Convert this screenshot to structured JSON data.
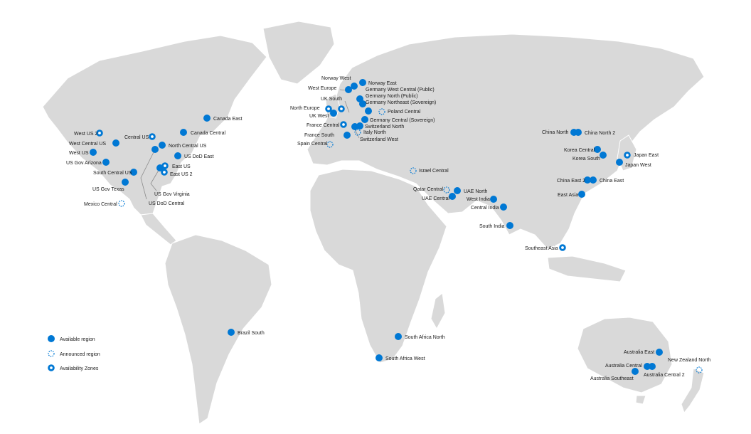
{
  "colors": {
    "marker": "#0078d4",
    "land": "#d9d9d9",
    "background": "#ffffff"
  },
  "legend": [
    {
      "type": "available",
      "label": "Available region",
      "icon": "filled-circle-icon"
    },
    {
      "type": "announced",
      "label": "Announced region",
      "icon": "dashed-circle-icon"
    },
    {
      "type": "zones",
      "label": "Availability Zones",
      "icon": "ring-circle-icon"
    }
  ],
  "regions": [
    {
      "name": "West US 2",
      "type": "zones"
    },
    {
      "name": "West Central US",
      "type": "available"
    },
    {
      "name": "West US",
      "type": "available"
    },
    {
      "name": "US Gov Arizona",
      "type": "available"
    },
    {
      "name": "Central US",
      "type": "zones"
    },
    {
      "name": "North Central US",
      "type": "available"
    },
    {
      "name": "South Central US",
      "type": "available"
    },
    {
      "name": "US Gov Texas",
      "type": "available"
    },
    {
      "name": "Canada East",
      "type": "available"
    },
    {
      "name": "Canada Central",
      "type": "available"
    },
    {
      "name": "US DoD East",
      "type": "available"
    },
    {
      "name": "East US",
      "type": "zones"
    },
    {
      "name": "East US 2",
      "type": "zones"
    },
    {
      "name": "US Gov Virginia",
      "type": "available"
    },
    {
      "name": "US DoD Central",
      "type": "available"
    },
    {
      "name": "Mexico Central",
      "type": "announced"
    },
    {
      "name": "Brazil South",
      "type": "available"
    },
    {
      "name": "Norway West",
      "type": "available"
    },
    {
      "name": "Norway East",
      "type": "available"
    },
    {
      "name": "West Europe",
      "type": "available"
    },
    {
      "name": "Germany West Central (Public)",
      "type": "available"
    },
    {
      "name": "Germany North (Public)",
      "type": "available"
    },
    {
      "name": "Germany Northeast (Sovereign)",
      "type": "available"
    },
    {
      "name": "UK South",
      "type": "zones"
    },
    {
      "name": "North Europe",
      "type": "zones"
    },
    {
      "name": "UK West",
      "type": "available"
    },
    {
      "name": "Poland Central",
      "type": "announced"
    },
    {
      "name": "Germany Central (Sovereign)",
      "type": "available"
    },
    {
      "name": "France Central",
      "type": "zones"
    },
    {
      "name": "Switzerland North",
      "type": "available"
    },
    {
      "name": "Italy North",
      "type": "announced"
    },
    {
      "name": "France South",
      "type": "available"
    },
    {
      "name": "Switzerland West",
      "type": "available"
    },
    {
      "name": "Spain Central",
      "type": "announced"
    },
    {
      "name": "Israel Central",
      "type": "announced"
    },
    {
      "name": "Qatar Central",
      "type": "announced"
    },
    {
      "name": "UAE North",
      "type": "available"
    },
    {
      "name": "UAE Central",
      "type": "available"
    },
    {
      "name": "West India",
      "type": "available"
    },
    {
      "name": "Central India",
      "type": "available"
    },
    {
      "name": "South India",
      "type": "available"
    },
    {
      "name": "South Africa North",
      "type": "available"
    },
    {
      "name": "South Africa West",
      "type": "available"
    },
    {
      "name": "China North",
      "type": "available"
    },
    {
      "name": "China North 2",
      "type": "available"
    },
    {
      "name": "Korea Central",
      "type": "available"
    },
    {
      "name": "Korea South",
      "type": "available"
    },
    {
      "name": "Japan East",
      "type": "zones"
    },
    {
      "name": "Japan West",
      "type": "available"
    },
    {
      "name": "China East 2",
      "type": "available"
    },
    {
      "name": "China East",
      "type": "available"
    },
    {
      "name": "East Asia",
      "type": "available"
    },
    {
      "name": "Southeast Asia",
      "type": "zones"
    },
    {
      "name": "Australia East",
      "type": "available"
    },
    {
      "name": "Australia Central",
      "type": "available"
    },
    {
      "name": "Australia Central 2",
      "type": "available"
    },
    {
      "name": "Australia Southeast",
      "type": "available"
    },
    {
      "name": "New Zealand North",
      "type": "announced"
    }
  ]
}
